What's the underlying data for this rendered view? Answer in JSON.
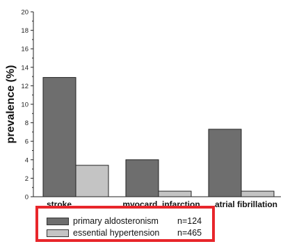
{
  "chart_data": {
    "type": "bar",
    "ylabel": "prevalence (%)",
    "ylim": [
      0,
      20
    ],
    "yticks": [
      0,
      2,
      4,
      6,
      8,
      10,
      12,
      14,
      16,
      18,
      20
    ],
    "categories": [
      "stroke",
      "myocard. infarction",
      "atrial fibrillation"
    ],
    "series": [
      {
        "name": "primary aldosteronism",
        "n_label": "n=124",
        "color": "#6e6e6e",
        "values": [
          12.9,
          4.0,
          7.3
        ]
      },
      {
        "name": "essential hypertension",
        "n_label": "n=465",
        "color": "#c4c4c4",
        "values": [
          3.4,
          0.6,
          0.6
        ]
      }
    ],
    "legend_placement": "bottom-left",
    "grid": false
  },
  "colors": {
    "legend_border": "#e8262b"
  }
}
